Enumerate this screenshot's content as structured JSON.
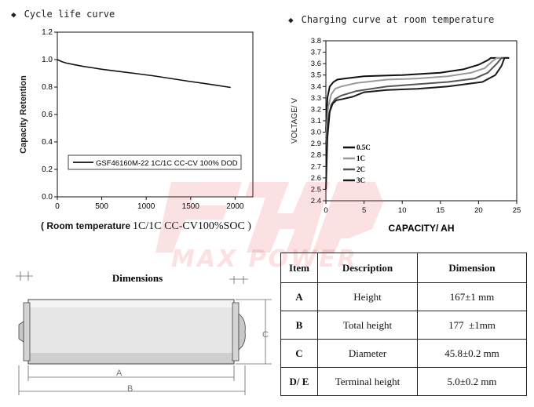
{
  "left_heading": {
    "bullet": "◆",
    "text": "Cycle life curve"
  },
  "right_heading": {
    "bullet": "◆",
    "text": "Charging curve at room temperature"
  },
  "left_caption": {
    "part1": "( Room temperature",
    "part2": "1C/1C CC-CV100%SOC )"
  },
  "watermark_text": "MAX POWER",
  "dimensions_title": "Dimensions",
  "drawing_labels": {
    "A": "A",
    "B": "B",
    "C": "C"
  },
  "table": {
    "headers": [
      "Item",
      "Description",
      "Dimension"
    ],
    "rows": [
      [
        "A",
        "Height",
        "167±1 mm"
      ],
      [
        "B",
        "Total height",
        "177  ±1mm"
      ],
      [
        "C",
        "Diameter",
        "45.8±0.2 mm"
      ],
      [
        "D/ E",
        "Terminal height",
        "5.0±0.2 mm"
      ]
    ]
  },
  "chart_data": [
    {
      "type": "line",
      "title": "Cycle life curve",
      "xlabel": "",
      "ylabel": "Capacity Retention",
      "xlim": [
        0,
        2200
      ],
      "ylim": [
        0,
        1.2
      ],
      "xticks": [
        0,
        500,
        1000,
        1500,
        2000
      ],
      "yticks": [
        0.0,
        0.2,
        0.4,
        0.6,
        0.8,
        1.0,
        1.2
      ],
      "grid": false,
      "legend_position": "bottom-left",
      "series": [
        {
          "name": "GSF46160M-22 1C/1C CC-CV 100% DOD",
          "x": [
            0,
            50,
            100,
            200,
            300,
            400,
            500,
            700,
            900,
            1100,
            1300,
            1500,
            1700,
            1950
          ],
          "y": [
            1.0,
            0.985,
            0.975,
            0.962,
            0.95,
            0.94,
            0.93,
            0.913,
            0.897,
            0.88,
            0.86,
            0.84,
            0.822,
            0.797
          ]
        }
      ]
    },
    {
      "type": "line",
      "title": "Charging curve at room temperature",
      "xlabel": "CAPACITY/ AH",
      "ylabel": "VOLTAGE/ V",
      "xlim": [
        0,
        25
      ],
      "ylim": [
        2.4,
        3.8
      ],
      "xticks": [
        0,
        5,
        10,
        15,
        20,
        25
      ],
      "yticks": [
        2.4,
        2.5,
        2.6,
        2.7,
        2.8,
        2.9,
        3.0,
        3.1,
        3.2,
        3.3,
        3.4,
        3.5,
        3.6,
        3.7,
        3.8
      ],
      "grid": false,
      "legend_position": "bottom-left",
      "series": [
        {
          "name": "0.5C",
          "color": "#111111",
          "x": [
            0,
            0.2,
            0.5,
            1.0,
            1.5,
            2.5,
            5,
            10,
            15,
            18,
            20,
            21.2,
            21.6,
            22,
            23.5
          ],
          "y": [
            3.0,
            3.3,
            3.4,
            3.44,
            3.46,
            3.47,
            3.49,
            3.5,
            3.52,
            3.55,
            3.59,
            3.63,
            3.65,
            3.65,
            3.65
          ]
        },
        {
          "name": "1C",
          "color": "#9a9a9a",
          "x": [
            0,
            0.3,
            0.7,
            1.2,
            2,
            4,
            8,
            12,
            16,
            19,
            20.8,
            21.8,
            22.4,
            24
          ],
          "y": [
            2.95,
            3.22,
            3.33,
            3.38,
            3.4,
            3.43,
            3.46,
            3.47,
            3.49,
            3.52,
            3.56,
            3.62,
            3.65,
            3.65
          ]
        },
        {
          "name": "2C",
          "color": "#555555",
          "x": [
            0,
            0.3,
            0.7,
            1.2,
            2,
            4,
            8,
            12,
            16,
            19.5,
            21.2,
            22.4,
            23,
            24
          ],
          "y": [
            2.9,
            3.12,
            3.24,
            3.29,
            3.32,
            3.36,
            3.4,
            3.42,
            3.44,
            3.47,
            3.52,
            3.6,
            3.65,
            3.65
          ]
        },
        {
          "name": "3C",
          "color": "#1a1a1a",
          "x": [
            0,
            0.2,
            0.5,
            0.9,
            1.4,
            2.2,
            3.5,
            5,
            8,
            12,
            16,
            20.5,
            22.2,
            23,
            23.4,
            24
          ],
          "y": [
            2.5,
            2.95,
            3.18,
            3.25,
            3.28,
            3.29,
            3.31,
            3.35,
            3.37,
            3.38,
            3.4,
            3.44,
            3.5,
            3.58,
            3.65,
            3.65
          ]
        }
      ]
    }
  ]
}
